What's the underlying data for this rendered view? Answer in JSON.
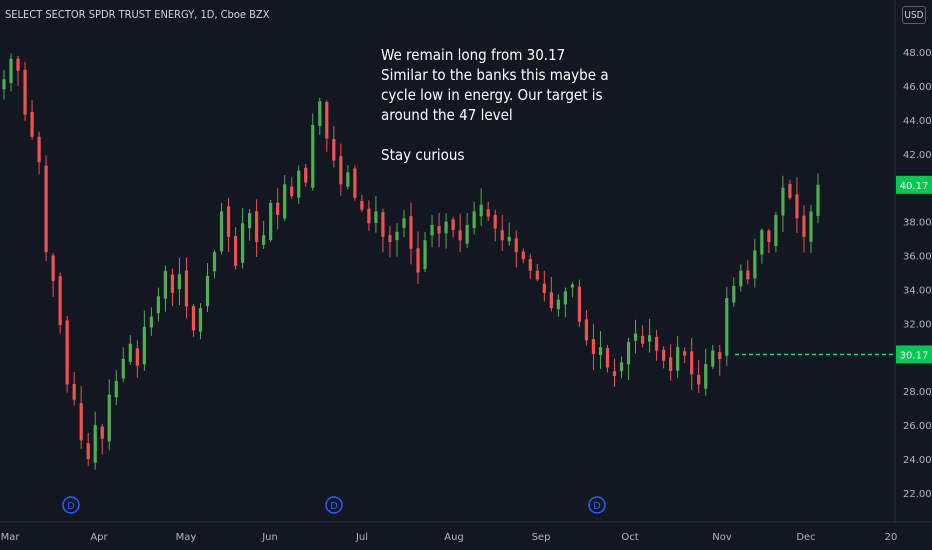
{
  "header": {
    "symbol_title": "SELECT SECTOR SPDR TRUST ENERGY, 1D, Cboe BZX",
    "currency": "USD"
  },
  "annotation": {
    "lines": [
      "We remain long from 30.17",
      "Similar to the banks this maybe a",
      "cycle low in energy. Our target is",
      "around the 47 level",
      "",
      "Stay curious"
    ]
  },
  "colors": {
    "background": "#131722",
    "up": "#26a69a",
    "up_bright": "#4caf50",
    "down": "#ef5350",
    "entry_line": "#00e676",
    "last_price_bg": "#00c853",
    "dividend_marker": "#2962ff"
  },
  "chart_data": {
    "type": "candlestick",
    "title": "SELECT SECTOR SPDR TRUST ENERGY, 1D, Cboe BZX",
    "y_axis": {
      "ticks": [
        "48.00",
        "46.00",
        "44.00",
        "42.00",
        "40.00",
        "38.00",
        "36.00",
        "34.00",
        "32.00",
        "30.00",
        "28.00",
        "26.00",
        "24.00",
        "22.00"
      ],
      "range": [
        21.2,
        49.8
      ],
      "side": "right"
    },
    "x_axis": {
      "ticks": [
        "Mar",
        "Apr",
        "May",
        "Jun",
        "Jul",
        "Aug",
        "Sep",
        "Oct",
        "Nov",
        "Dec",
        "20"
      ]
    },
    "last_price_label": "40.17",
    "horizontal_level": {
      "value": 30.17,
      "label": "30.17",
      "style": "dashed",
      "start": "Nov"
    },
    "dividend_markers": [
      {
        "label": "D",
        "date": "Mar 20"
      },
      {
        "label": "D",
        "date": "Jun 19"
      },
      {
        "label": "D",
        "date": "Sep 18"
      }
    ],
    "candles_note": "daily OHLC, sampled closes below",
    "closes": [
      46.4,
      47.6,
      46.9,
      44.3,
      43.0,
      41.5,
      36.2,
      34.5,
      31.9,
      28.4,
      27.5,
      25.1,
      24.0,
      26.0,
      25.2,
      27.8,
      28.6,
      29.9,
      30.8,
      29.5,
      31.8,
      32.4,
      33.6,
      35.1,
      33.8,
      34.9,
      33.0,
      31.6,
      32.9,
      34.8,
      36.2,
      38.6,
      37.1,
      35.4,
      37.9,
      38.5,
      36.8,
      37.2,
      39.1,
      38.4,
      40.2,
      39.5,
      41.0,
      40.3,
      43.7,
      45.1,
      42.9,
      41.6,
      40.2,
      40.9,
      39.4,
      38.7,
      37.9,
      38.6,
      37.1,
      36.8,
      37.4,
      38.2,
      36.4,
      35.0,
      36.9,
      37.8,
      37.3,
      38.0,
      37.5,
      36.9,
      37.8,
      38.6,
      39.0,
      38.3,
      37.6,
      36.9,
      37.1,
      36.2,
      35.8,
      35.1,
      34.6,
      33.8,
      32.9,
      33.4,
      33.9,
      34.3,
      32.1,
      31.0,
      30.2,
      30.6,
      29.4,
      28.9,
      29.7,
      30.9,
      31.4,
      30.8,
      31.3,
      30.4,
      29.8,
      29.2,
      30.6,
      30.1,
      29.0,
      28.4,
      29.6,
      30.4,
      29.9,
      33.5,
      34.2,
      35.1,
      34.6,
      36.3,
      37.5,
      36.8,
      38.4,
      40.0,
      39.4,
      38.2,
      37.1,
      38.6,
      40.17
    ]
  }
}
